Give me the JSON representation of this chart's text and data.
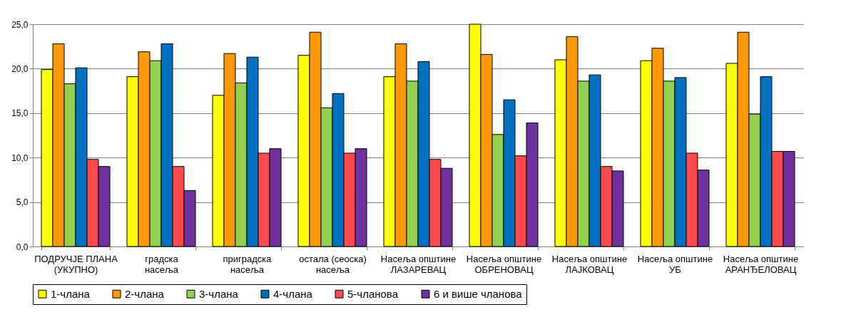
{
  "chart_data": {
    "type": "bar",
    "categories": [
      "ПОДРУЧЈЕ ПЛАНА\n(УКУПНО)",
      "градска\nнасеља",
      "приградска\nнасеља",
      "остала (сеоска)\nнасеља",
      "Насеља општине\nЛАЗАРЕВАЦ",
      "Насеља општине\nОБРЕНОВАЦ",
      "Насеља општине\nЛАЈКОВАЦ",
      "Насеља општине\nУБ",
      "Насеља општине\nАРАНЂЕЛОВАЦ"
    ],
    "series": [
      {
        "name": "1-члана",
        "color": "#ffff00",
        "values": [
          19.9,
          19.1,
          17.0,
          21.5,
          19.1,
          25.0,
          21.0,
          20.9,
          20.6
        ]
      },
      {
        "name": "2-члана",
        "color": "#ff9900",
        "values": [
          22.8,
          21.9,
          21.7,
          24.1,
          22.8,
          21.6,
          23.6,
          22.3,
          24.1
        ]
      },
      {
        "name": "3-члана",
        "color": "#92d050",
        "values": [
          18.3,
          20.9,
          18.4,
          15.6,
          18.6,
          12.6,
          18.6,
          18.6,
          14.9
        ]
      },
      {
        "name": "4-члана",
        "color": "#0070c0",
        "values": [
          20.1,
          22.8,
          21.3,
          17.2,
          20.8,
          16.5,
          19.3,
          19.0,
          19.1
        ]
      },
      {
        "name": "5-чланова",
        "color": "#ff4b4b",
        "values": [
          9.8,
          9.0,
          10.5,
          10.5,
          9.8,
          10.2,
          9.0,
          10.5,
          10.7
        ]
      },
      {
        "name": "6 и више чланова",
        "color": "#7030a0",
        "values": [
          9.0,
          6.3,
          11.0,
          11.0,
          8.8,
          13.9,
          8.5,
          8.6,
          10.7
        ]
      }
    ],
    "ylim": [
      0,
      25
    ],
    "yticks": [
      {
        "value": 0,
        "label": "0,0"
      },
      {
        "value": 5,
        "label": "5,0"
      },
      {
        "value": 10,
        "label": "10,0"
      },
      {
        "value": 15,
        "label": "15,0"
      },
      {
        "value": 20,
        "label": "20,0"
      },
      {
        "value": 25,
        "label": "25,0"
      }
    ],
    "grid": "y",
    "legend": "bottom"
  }
}
